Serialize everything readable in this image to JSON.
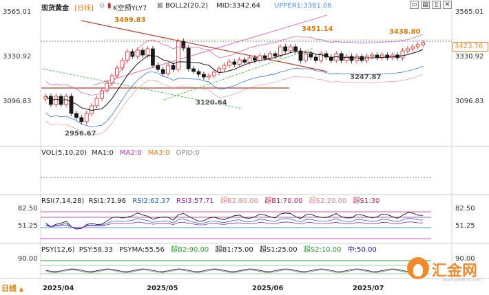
{
  "header": {
    "instrument": "现货黄金",
    "period": "[日线]",
    "indicator_name": "K空预YLY7",
    "boll_label": "BOLL2(20,2)",
    "mid_label": "MID:3342.64",
    "upper_label": "UPPER1:3381.06",
    "icons": [
      "settings-icon",
      "minimize-icon",
      "window-icon",
      "maximize-icon",
      "close-icon"
    ]
  },
  "price_axis": {
    "left": [
      "3565.01",
      "3330.92",
      "3096.83"
    ],
    "right": [
      "3565.01",
      "3330.92",
      "3096.83"
    ],
    "current_price": "3423.76"
  },
  "annotations": {
    "high_1": "3499.83",
    "high_2": "3451.14",
    "high_3": "3438.80",
    "low_1": "2956.67",
    "low_2": "3120.64",
    "low_3": "3247.87"
  },
  "volume_panel": {
    "title": "VOL(5,10,20)",
    "ma1": "MA1:0",
    "ma2": "MA2:0",
    "ma3": "MA3:0",
    "opid": "OPID:0"
  },
  "rsi_panel": {
    "title": "RSI(7,14,28)",
    "rsi1": "RSI1:71.96",
    "rsi2": "RSI2:62.37",
    "rsi3": "RSI3:57.71",
    "b2": "超B2:80.00",
    "b1": "超B1:70.00",
    "s2": "超S2:20.00",
    "s1": "超S1:30",
    "axis": [
      "82.50",
      "51.25"
    ]
  },
  "psy_panel": {
    "title": "PSY(12,6)",
    "psy": "PSY:58.33",
    "psyma": "PSYMA:55.56",
    "b2": "超B2:90.00",
    "b1": "超B1:75.00",
    "s1": "超S1:25.00",
    "s2": "超S2:10.00",
    "mid": "中:50.00",
    "axis": [
      "90.00"
    ]
  },
  "x_axis": [
    "2025/04",
    "2025/05",
    "2025/06",
    "2025/07"
  ],
  "footer": {
    "period_selector": "日线"
  },
  "logo": {
    "text": "汇金网",
    "url": "www.gold678.com"
  },
  "colors": {
    "up": "#e02020",
    "down": "#1a1a1a",
    "accent_orange": "#f08b2d",
    "ma_blue": "#1e64dc",
    "boll_pink": "#e0559a",
    "ref_line": "#0a6fd6",
    "rsi_purple": "#a01ea0"
  }
}
